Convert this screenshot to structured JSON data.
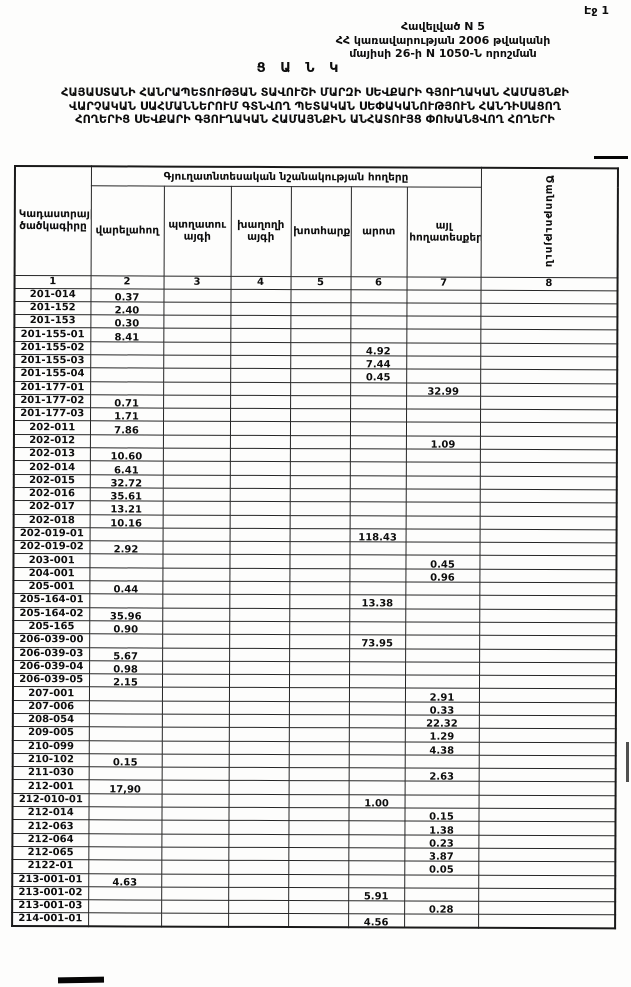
{
  "page": {
    "page_label": "Էջ 1",
    "appendix_lines": [
      "Հավելված N 5",
      "ՀՀ կառավարության 2006 թվականի",
      "մայիսի 26-ի N 1050-Ն որոշման"
    ],
    "doc_title": "Ց Ա Ն Կ",
    "title_lines": [
      "ՀԱՅԱՍՏԱՆԻ ՀԱՆՐԱՊԵՏՈՒԹՅԱՆ ՏԱՎՈՒՇԻ ՄԱՐԶԻ ՍԵՎՔԱՐԻ ԳՅՈՒՂԱԿԱՆ  ՀԱՄԱՅՆՔԻ",
      "ՎԱՐՉԱԿԱՆ ՍԱՀՄԱՆՆԵՐՈՒՄ  ԳՏՆՎՈՂ  ՊԵՏԱԿԱՆ ՍԵՓԱԿԱՆՈՒԹՅՈՒՆ  ՀԱՆԴԻՍԱՑՈՂ",
      "ՀՈՂԵՐԻՑ ՍԵՎՔԱՐԻ ԳՅՈՒՂԱԿԱՆ ՀԱՄԱՅՆՔԻՆ ԱՆՀԱՏՈՒՅՑ ՓՈԽԱՆՑՎՈՂ ՀՈՂԵՐԻ"
    ]
  },
  "table": {
    "group_header": "Գյուղատնտեսական նշանակության հողերը",
    "code_column_header": "Կադաստրային ծածկագիրը",
    "note_column_header": "Ծանոթություն",
    "land_type_headers": [
      "վարելահող",
      "պտղատու այգի",
      "խաղողի այգի",
      "խոտհարք",
      "արոտ",
      "այլ հողատեսքեր"
    ],
    "column_numbers": [
      "1",
      "2",
      "3",
      "4",
      "5",
      "6",
      "7",
      "8"
    ],
    "rows": [
      [
        "201-014",
        "0.37",
        "",
        "",
        "",
        "",
        "",
        ""
      ],
      [
        "201-152",
        "2.40",
        "",
        "",
        "",
        "",
        "",
        ""
      ],
      [
        "201-153",
        "0.30",
        "",
        "",
        "",
        "",
        "",
        ""
      ],
      [
        "201-155-01",
        "8.41",
        "",
        "",
        "",
        "",
        "",
        ""
      ],
      [
        "201-155-02",
        "",
        "",
        "",
        "",
        "4.92",
        "",
        ""
      ],
      [
        "201-155-03",
        "",
        "",
        "",
        "",
        "7.44",
        "",
        ""
      ],
      [
        "201-155-04",
        "",
        "",
        "",
        "",
        "0.45",
        "",
        ""
      ],
      [
        "201-177-01",
        "",
        "",
        "",
        "",
        "",
        "32.99",
        ""
      ],
      [
        "201-177-02",
        "0.71",
        "",
        "",
        "",
        "",
        "",
        ""
      ],
      [
        "201-177-03",
        "1.71",
        "",
        "",
        "",
        "",
        "",
        ""
      ],
      [
        "202-011",
        "7.86",
        "",
        "",
        "",
        "",
        "",
        ""
      ],
      [
        "202-012",
        "",
        "",
        "",
        "",
        "",
        "1.09",
        ""
      ],
      [
        "202-013",
        "10.60",
        "",
        "",
        "",
        "",
        "",
        ""
      ],
      [
        "202-014",
        "6.41",
        "",
        "",
        "",
        "",
        "",
        ""
      ],
      [
        "202-015",
        "32.72",
        "",
        "",
        "",
        "",
        "",
        ""
      ],
      [
        "202-016",
        "35.61",
        "",
        "",
        "",
        "",
        "",
        ""
      ],
      [
        "202-017",
        "13.21",
        "",
        "",
        "",
        "",
        "",
        ""
      ],
      [
        "202-018",
        "10.16",
        "",
        "",
        "",
        "",
        "",
        ""
      ],
      [
        "202-019-01",
        "",
        "",
        "",
        "",
        "118.43",
        "",
        ""
      ],
      [
        "202-019-02",
        "2.92",
        "",
        "",
        "",
        "",
        "",
        ""
      ],
      [
        "203-001",
        "",
        "",
        "",
        "",
        "",
        "0.45",
        ""
      ],
      [
        "204-001",
        "",
        "",
        "",
        "",
        "",
        "0.96",
        ""
      ],
      [
        "205-001",
        "0.44",
        "",
        "",
        "",
        "",
        "",
        ""
      ],
      [
        "205-164-01",
        "",
        "",
        "",
        "",
        "13.38",
        "",
        ""
      ],
      [
        "205-164-02",
        "35.96",
        "",
        "",
        "",
        "",
        "",
        ""
      ],
      [
        "205-165",
        "0.90",
        "",
        "",
        "",
        "",
        "",
        ""
      ],
      [
        "206-039-00",
        "",
        "",
        "",
        "",
        "73.95",
        "",
        ""
      ],
      [
        "206-039-03",
        "5.67",
        "",
        "",
        "",
        "",
        "",
        ""
      ],
      [
        "206-039-04",
        "0.98",
        "",
        "",
        "",
        "",
        "",
        ""
      ],
      [
        "206-039-05",
        "2.15",
        "",
        "",
        "",
        "",
        "",
        ""
      ],
      [
        "207-001",
        "",
        "",
        "",
        "",
        "",
        "2.91",
        ""
      ],
      [
        "207-006",
        "",
        "",
        "",
        "",
        "",
        "0.33",
        ""
      ],
      [
        "208-054",
        "",
        "",
        "",
        "",
        "",
        "22.32",
        ""
      ],
      [
        "209-005",
        "",
        "",
        "",
        "",
        "",
        "1.29",
        ""
      ],
      [
        "210-099",
        "",
        "",
        "",
        "",
        "",
        "4.38",
        ""
      ],
      [
        "210-102",
        "0.15",
        "",
        "",
        "",
        "",
        "",
        ""
      ],
      [
        "211-030",
        "",
        "",
        "",
        "",
        "",
        "2.63",
        ""
      ],
      [
        "212-001",
        "17,90",
        "",
        "",
        "",
        "",
        "",
        ""
      ],
      [
        "212-010-01",
        "",
        "",
        "",
        "",
        "1.00",
        "",
        ""
      ],
      [
        "212-014",
        "",
        "",
        "",
        "",
        "",
        "0.15",
        ""
      ],
      [
        "212-063",
        "",
        "",
        "",
        "",
        "",
        "1.38",
        ""
      ],
      [
        "212-064",
        "",
        "",
        "",
        "",
        "",
        "0.23",
        ""
      ],
      [
        "212-065",
        "",
        "",
        "",
        "",
        "",
        "3.87",
        ""
      ],
      [
        "2122-01",
        "",
        "",
        "",
        "",
        "",
        "0.05",
        ""
      ],
      [
        "213-001-01",
        "4.63",
        "",
        "",
        "",
        "",
        "",
        ""
      ],
      [
        "213-001-02",
        "",
        "",
        "",
        "",
        "5.91",
        "",
        ""
      ],
      [
        "213-001-03",
        "",
        "",
        "",
        "",
        "",
        "0.28",
        ""
      ],
      [
        "214-001-01",
        "",
        "",
        "",
        "",
        "4.56",
        "",
        ""
      ]
    ]
  }
}
